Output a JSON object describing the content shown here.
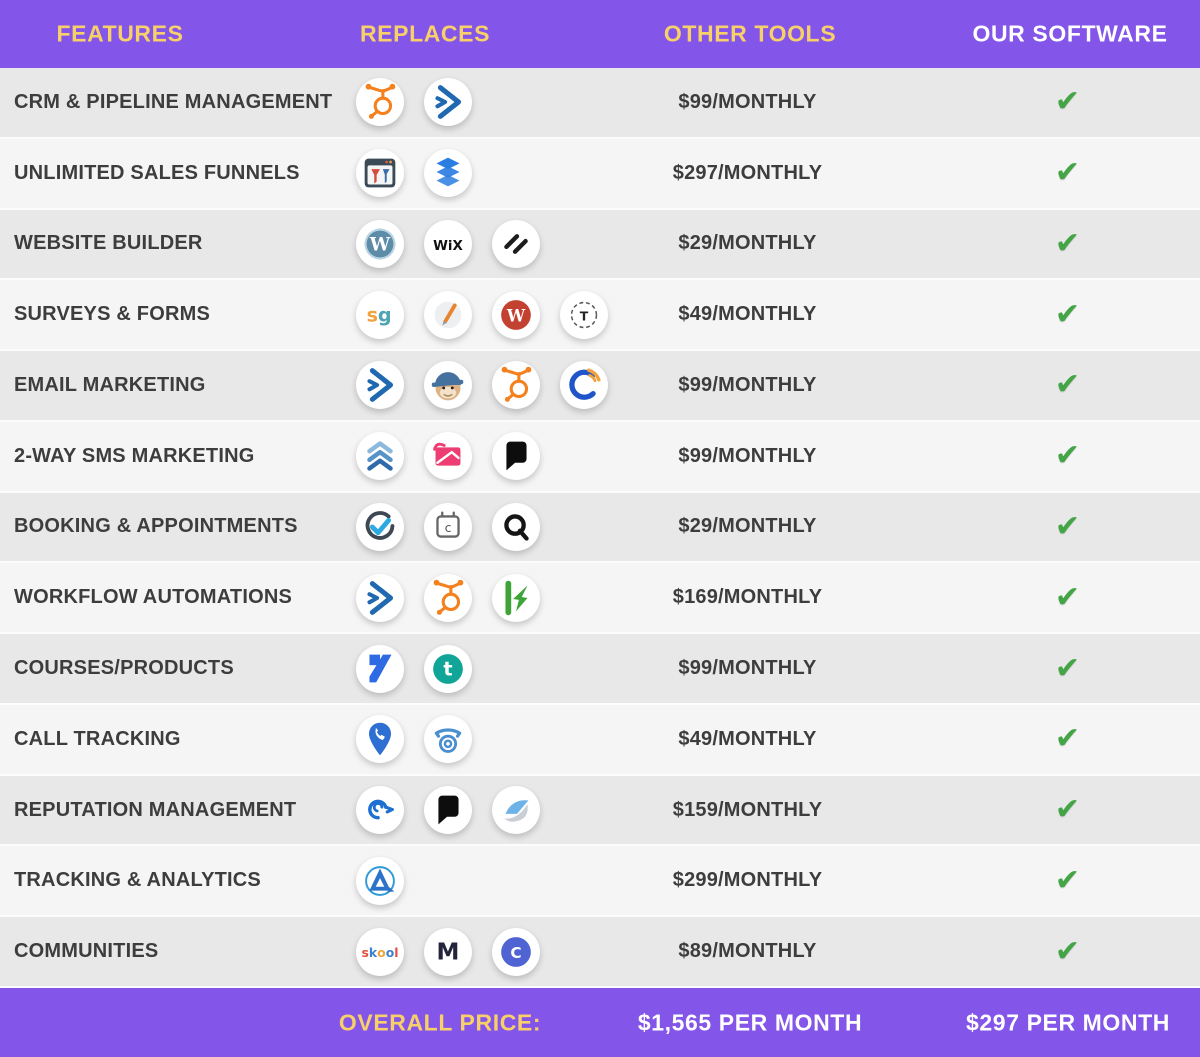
{
  "colors": {
    "header_bg": "#8355e9",
    "header_accent": "#f7d06a",
    "header_text": "#ffffff",
    "check_green": "#43a546",
    "row_odd": "#e9e8e9",
    "row_even": "#f6f5f6",
    "text_dark": "#3d3d3d"
  },
  "header": {
    "features_label": "FEATURES",
    "replaces_label": "REPLACES",
    "other_tools_label": "OTHER TOOLS",
    "our_software_label": "OUR SOFTWARE"
  },
  "table": {
    "check_glyph": "✔",
    "rows": [
      {
        "feature": "CRM & PIPELINE MANAGEMENT",
        "replaces_icons": [
          "hubspot-icon",
          "activecampaign-icon"
        ],
        "other_tools_price": "$99/MONTHLY",
        "our_software_included": true
      },
      {
        "feature": "UNLIMITED SALES FUNNELS",
        "replaces_icons": [
          "clickfunnels-icon",
          "leadpages-icon"
        ],
        "other_tools_price": "$297/MONTHLY",
        "our_software_included": true
      },
      {
        "feature": "WEBSITE BUILDER",
        "replaces_icons": [
          "wordpress-icon",
          "wix-icon",
          "squarespace-icon"
        ],
        "other_tools_price": "$29/MONTHLY",
        "our_software_included": true
      },
      {
        "feature": "SURVEYS & FORMS",
        "replaces_icons": [
          "surveygizmo-icon",
          "jotform-pen-icon",
          "wufoo-icon",
          "typeform-icon"
        ],
        "other_tools_price": "$49/MONTHLY",
        "our_software_included": true
      },
      {
        "feature": "EMAIL MARKETING",
        "replaces_icons": [
          "activecampaign-icon",
          "mailchimp-icon",
          "hubspot-icon",
          "constant-contact-icon"
        ],
        "other_tools_price": "$99/MONTHLY",
        "our_software_included": true
      },
      {
        "feature": "2-WAY SMS MARKETING",
        "replaces_icons": [
          "slicktext-icon",
          "sms-envelope-icon",
          "podium-icon"
        ],
        "other_tools_price": "$99/MONTHLY",
        "our_software_included": true
      },
      {
        "feature": "BOOKING & APPOINTMENTS",
        "replaces_icons": [
          "setmore-icon",
          "calendar-icon",
          "acuity-icon"
        ],
        "other_tools_price": "$29/MONTHLY",
        "our_software_included": true
      },
      {
        "feature": "WORKFLOW AUTOMATIONS",
        "replaces_icons": [
          "activecampaign-icon",
          "hubspot-icon",
          "keap-icon"
        ],
        "other_tools_price": "$169/MONTHLY",
        "our_software_included": true
      },
      {
        "feature": "COURSES/PRODUCTS",
        "replaces_icons": [
          "kajabi-icon",
          "teachable-icon"
        ],
        "other_tools_price": "$99/MONTHLY",
        "our_software_included": true
      },
      {
        "feature": "CALL TRACKING",
        "replaces_icons": [
          "callrail-icon",
          "retro-phone-icon"
        ],
        "other_tools_price": "$49/MONTHLY",
        "our_software_included": true
      },
      {
        "feature": "REPUTATION MANAGEMENT",
        "replaces_icons": [
          "birdeye-icon",
          "podium-icon",
          "swell-icon"
        ],
        "other_tools_price": "$159/MONTHLY",
        "our_software_included": true
      },
      {
        "feature": "TRACKING & ANALYTICS",
        "replaces_icons": [
          "agencyanalytics-icon"
        ],
        "other_tools_price": "$299/MONTHLY",
        "our_software_included": true
      },
      {
        "feature": "COMMUNITIES",
        "replaces_icons": [
          "skool-icon",
          "mighty-networks-icon",
          "circle-icon"
        ],
        "other_tools_price": "$89/MONTHLY",
        "our_software_included": true
      }
    ]
  },
  "footer": {
    "overall_price_label": "OVERALL PRICE:",
    "other_tools_total": "$1,565 PER MONTH",
    "our_software_total": "$297 PER MONTH"
  }
}
